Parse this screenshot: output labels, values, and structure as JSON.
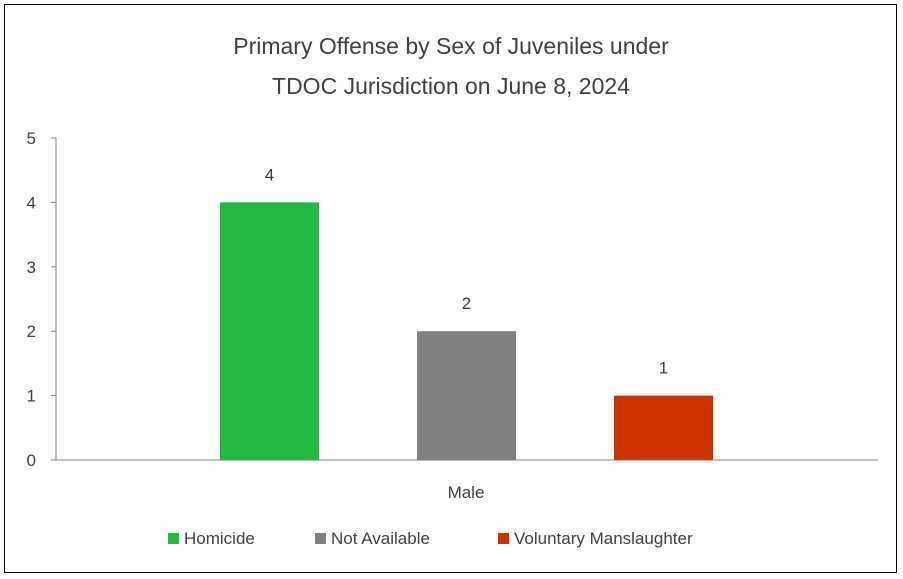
{
  "chart_data": {
    "type": "bar",
    "title_lines": [
      "Primary Offense by Sex of Juveniles under",
      "TDOC Jurisdiction on June 8, 2024"
    ],
    "categories": [
      "Male"
    ],
    "series": [
      {
        "name": "Homicide",
        "values": [
          4
        ],
        "color": "#21b940"
      },
      {
        "name": "Not Available",
        "values": [
          2
        ],
        "color": "#808080"
      },
      {
        "name": "Voluntary Manslaughter",
        "values": [
          1
        ],
        "color": "#cc3300"
      }
    ],
    "ylim": [
      0,
      5
    ],
    "yticks": [
      "0",
      "1",
      "2",
      "3",
      "4",
      "5"
    ],
    "data_labels": [
      "4",
      "2",
      "1"
    ],
    "grid": false,
    "legend_position": "bottom",
    "axis_color": "#808080"
  }
}
